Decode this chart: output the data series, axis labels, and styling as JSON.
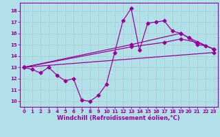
{
  "xlabel": "Windchill (Refroidissement éolien,°C)",
  "bg_color": "#b2e0e8",
  "line_color": "#990099",
  "grid_color": "#aacccc",
  "xlim": [
    -0.5,
    23.5
  ],
  "ylim": [
    9.5,
    18.7
  ],
  "yticks": [
    10,
    11,
    12,
    13,
    14,
    15,
    16,
    17,
    18
  ],
  "xticks": [
    0,
    1,
    2,
    3,
    4,
    5,
    6,
    7,
    8,
    9,
    10,
    11,
    12,
    13,
    14,
    15,
    16,
    17,
    18,
    19,
    20,
    21,
    22,
    23
  ],
  "curves": [
    {
      "x": [
        0,
        1,
        2,
        3,
        4,
        5,
        6,
        7,
        8,
        9,
        10,
        11,
        12,
        13,
        14,
        15,
        16,
        17,
        18,
        19,
        20,
        21,
        22,
        23
      ],
      "y": [
        13.0,
        12.8,
        12.5,
        13.0,
        12.3,
        11.8,
        12.0,
        10.1,
        10.0,
        10.5,
        11.5,
        14.3,
        17.1,
        18.2,
        14.5,
        16.9,
        17.0,
        17.1,
        16.2,
        16.0,
        15.6,
        15.0,
        14.9,
        14.6
      ]
    },
    {
      "x": [
        0,
        13,
        19,
        20,
        23
      ],
      "y": [
        13.0,
        15.0,
        16.0,
        15.6,
        14.6
      ]
    },
    {
      "x": [
        0,
        23
      ],
      "y": [
        13.0,
        14.3
      ]
    },
    {
      "x": [
        0,
        13,
        17,
        19,
        21,
        23
      ],
      "y": [
        13.0,
        14.8,
        15.2,
        15.5,
        15.2,
        14.6
      ]
    }
  ],
  "marker": "D",
  "markersize": 2.5,
  "linewidth": 0.9,
  "label_fontsize": 6,
  "tick_fontsize": 5
}
